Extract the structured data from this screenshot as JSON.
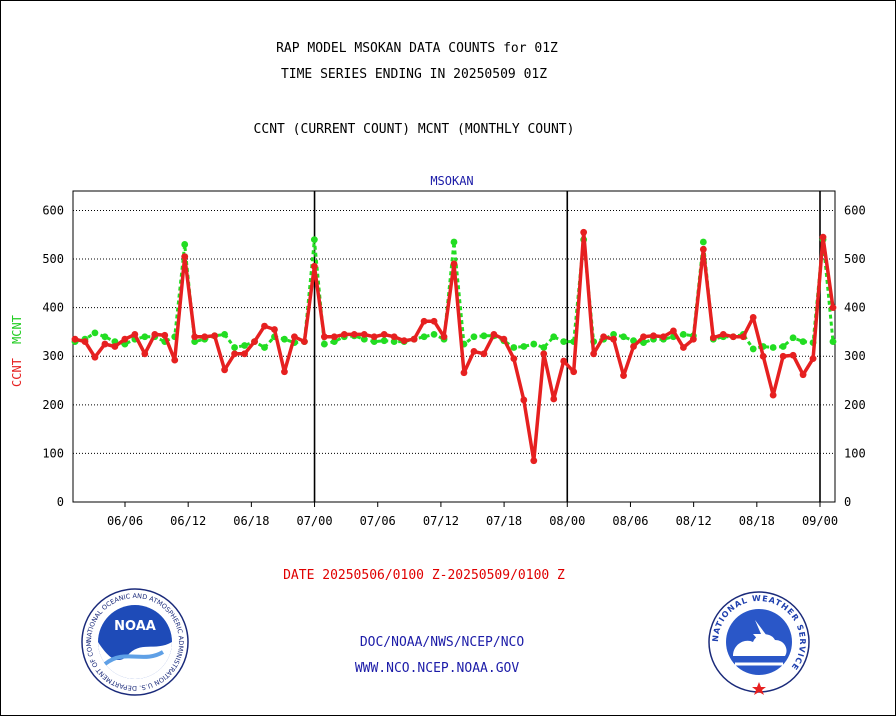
{
  "chart_data": {
    "type": "line",
    "title_lines": [
      "RAP MODEL MSOKAN DATA COUNTS for 01Z",
      "TIME SERIES ENDING IN 20250509 01Z",
      "CCNT (CURRENT COUNT) MCNT (MONTHLY COUNT)"
    ],
    "panel_label": "MSOKAN",
    "ylabel": [
      "CCNT",
      "MCNT"
    ],
    "ylim": [
      0,
      640
    ],
    "yticks": [
      0,
      100,
      200,
      300,
      400,
      500,
      600
    ],
    "xticks": [
      "06/06",
      "06/12",
      "06/18",
      "07/00",
      "07/06",
      "07/12",
      "07/18",
      "08/00",
      "08/06",
      "08/12",
      "08/18",
      "09/00"
    ],
    "grid": true,
    "date_range": "DATE 20250506/0100 Z-20250509/0100 Z",
    "footer": [
      "DOC/NOAA/NWS/NCEP/NCO",
      "WWW.NCO.NCEP.NOAA.GOV"
    ],
    "series": [
      {
        "name": "CCNT",
        "color": "#e62020",
        "values": [
          335,
          330,
          298,
          325,
          320,
          335,
          345,
          305,
          345,
          343,
          292,
          505,
          340,
          340,
          342,
          272,
          305,
          305,
          330,
          362,
          355,
          268,
          340,
          330,
          485,
          340,
          340,
          345,
          345,
          345,
          340,
          345,
          340,
          332,
          335,
          372,
          372,
          340,
          490,
          266,
          310,
          305,
          345,
          335,
          295,
          210,
          85,
          305,
          212,
          290,
          268,
          555,
          305,
          340,
          335,
          260,
          320,
          340,
          342,
          340,
          352,
          318,
          335,
          520,
          338,
          345,
          340,
          340,
          380,
          300,
          220,
          300,
          302,
          262,
          295,
          545,
          400
        ]
      },
      {
        "name": "MCNT",
        "color": "#22dd22",
        "values": [
          330,
          335,
          348,
          340,
          330,
          325,
          335,
          340,
          340,
          330,
          340,
          530,
          330,
          335,
          342,
          345,
          318,
          322,
          330,
          318,
          340,
          335,
          328,
          330,
          540,
          325,
          330,
          340,
          342,
          335,
          330,
          332,
          330,
          330,
          335,
          340,
          345,
          335,
          535,
          325,
          340,
          342,
          342,
          332,
          318,
          320,
          325,
          318,
          340,
          330,
          330,
          540,
          330,
          335,
          345,
          340,
          332,
          328,
          335,
          335,
          340,
          345,
          342,
          535,
          335,
          340,
          340,
          345,
          315,
          320,
          318,
          320,
          338,
          330,
          328,
          540,
          330
        ]
      }
    ]
  },
  "logos": {
    "noaa": {
      "text": "NOAA",
      "ring_text": "NATIONAL OCEANIC AND ATMOSPHERIC ADMINISTRATION U.S. DEPARTMENT OF COMMERCE"
    },
    "nws": {
      "ring_text": "NATIONAL WEATHER SERVICE"
    }
  }
}
